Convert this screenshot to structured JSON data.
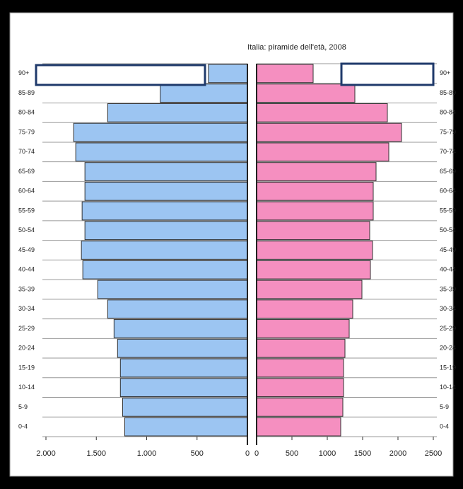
{
  "chart_data": {
    "type": "pyramid",
    "title": "Italia: piramide dell'età, 2008",
    "categories": [
      "0-4",
      "5-9",
      "10-14",
      "15-19",
      "20-24",
      "25-29",
      "30-34",
      "35-39",
      "40-44",
      "45-49",
      "50-54",
      "55-59",
      "60-64",
      "65-69",
      "70-74",
      "75-79",
      "80-84",
      "85-89",
      "90+"
    ],
    "series": [
      {
        "color": "#9cc5f2",
        "axis": "x",
        "values": [
          1218,
          1239,
          1261,
          1261,
          1289,
          1324,
          1387,
          1486,
          1634,
          1648,
          1613,
          1641,
          1613,
          1613,
          1704,
          1725,
          1387,
          866,
          387
        ]
      },
      {
        "color": "#f58fc0",
        "axis": "x2",
        "values": [
          1190,
          1220,
          1230,
          1230,
          1250,
          1310,
          1360,
          1490,
          1610,
          1640,
          1600,
          1650,
          1650,
          1690,
          1870,
          2050,
          1850,
          1390,
          800
        ]
      }
    ],
    "xlim": [
      2000,
      0
    ],
    "xticks": [
      {
        "value": 2000,
        "label": "2.000"
      },
      {
        "value": 1500,
        "label": "1.500"
      },
      {
        "value": 1000,
        "label": "1.000"
      },
      500,
      0
    ],
    "x2lim": [
      0,
      2500
    ],
    "x2ticks": [
      0,
      500,
      1000,
      1500,
      2000,
      2500
    ],
    "grid": true
  }
}
